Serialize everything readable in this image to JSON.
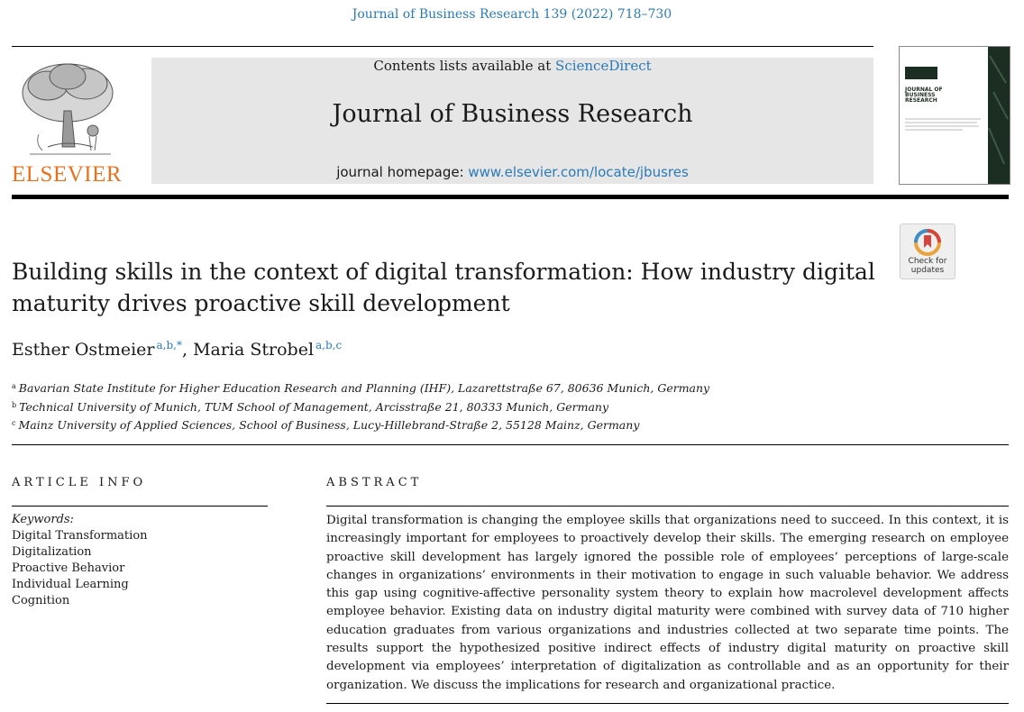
{
  "header": {
    "citation": "Journal of Business Research 139 (2022) 718–730",
    "contents_prefix": "Contents lists available at ",
    "contents_link": "ScienceDirect",
    "journal_title": "Journal of Business Research",
    "homepage_prefix": "journal homepage: ",
    "homepage_link": "www.elsevier.com/locate/jbusres",
    "publisher": "ELSEVIER",
    "publisher_color": "#e9711c",
    "link_color": "#2a7ab9",
    "cover": {
      "title_lines": [
        "JOURNAL OF",
        "BUSINESS",
        "RESEARCH"
      ]
    },
    "check_updates": {
      "line1": "Check for",
      "line2": "updates",
      "icon": "crossmark-icon"
    }
  },
  "article": {
    "title": "Building skills in the context of digital transformation: How industry digital maturity drives proactive skill development",
    "authors": [
      {
        "name": "Esther Ostmeier",
        "sup": "a,b,*"
      },
      {
        "name": "Maria Strobel",
        "sup": "a,b,c"
      }
    ],
    "author_separator": ", ",
    "affiliations": [
      {
        "key": "a",
        "text": "Bavarian State Institute for Higher Education Research and Planning (IHF), Lazarettstraße 67, 80636 Munich, Germany"
      },
      {
        "key": "b",
        "text": "Technical University of Munich, TUM School of Management, Arcisstraße 21, 80333 Munich, Germany"
      },
      {
        "key": "c",
        "text": "Mainz University of Applied Sciences, School of Business, Lucy-Hillebrand-Straße 2, 55128 Mainz, Germany"
      }
    ]
  },
  "article_info": {
    "heading": "ARTICLE INFO",
    "keywords_label": "Keywords:",
    "keywords": [
      "Digital Transformation",
      "Digitalization",
      "Proactive Behavior",
      "Individual Learning",
      "Cognition"
    ]
  },
  "abstract": {
    "heading": "ABSTRACT",
    "text": "Digital transformation is changing the employee skills that organizations need to succeed. In this context, it is increasingly important for employees to proactively develop their skills. The emerging research on employee proactive skill development has largely ignored the possible role of employees’ perceptions of large-scale changes in organizations’ environments in their motivation to engage in such valuable behavior. We address this gap using cognitive-affective personality system theory to explain how macrolevel development affects employee behavior. Existing data on industry digital maturity were combined with survey data of 710 higher education graduates from various organizations and industries collected at two separate time points. The results support the hypothesized positive indirect effects of industry digital maturity on proactive skill development via employees’ interpretation of digitalization as controllable and as an opportunity for their organization. We discuss the implications for research and organizational practice."
  }
}
